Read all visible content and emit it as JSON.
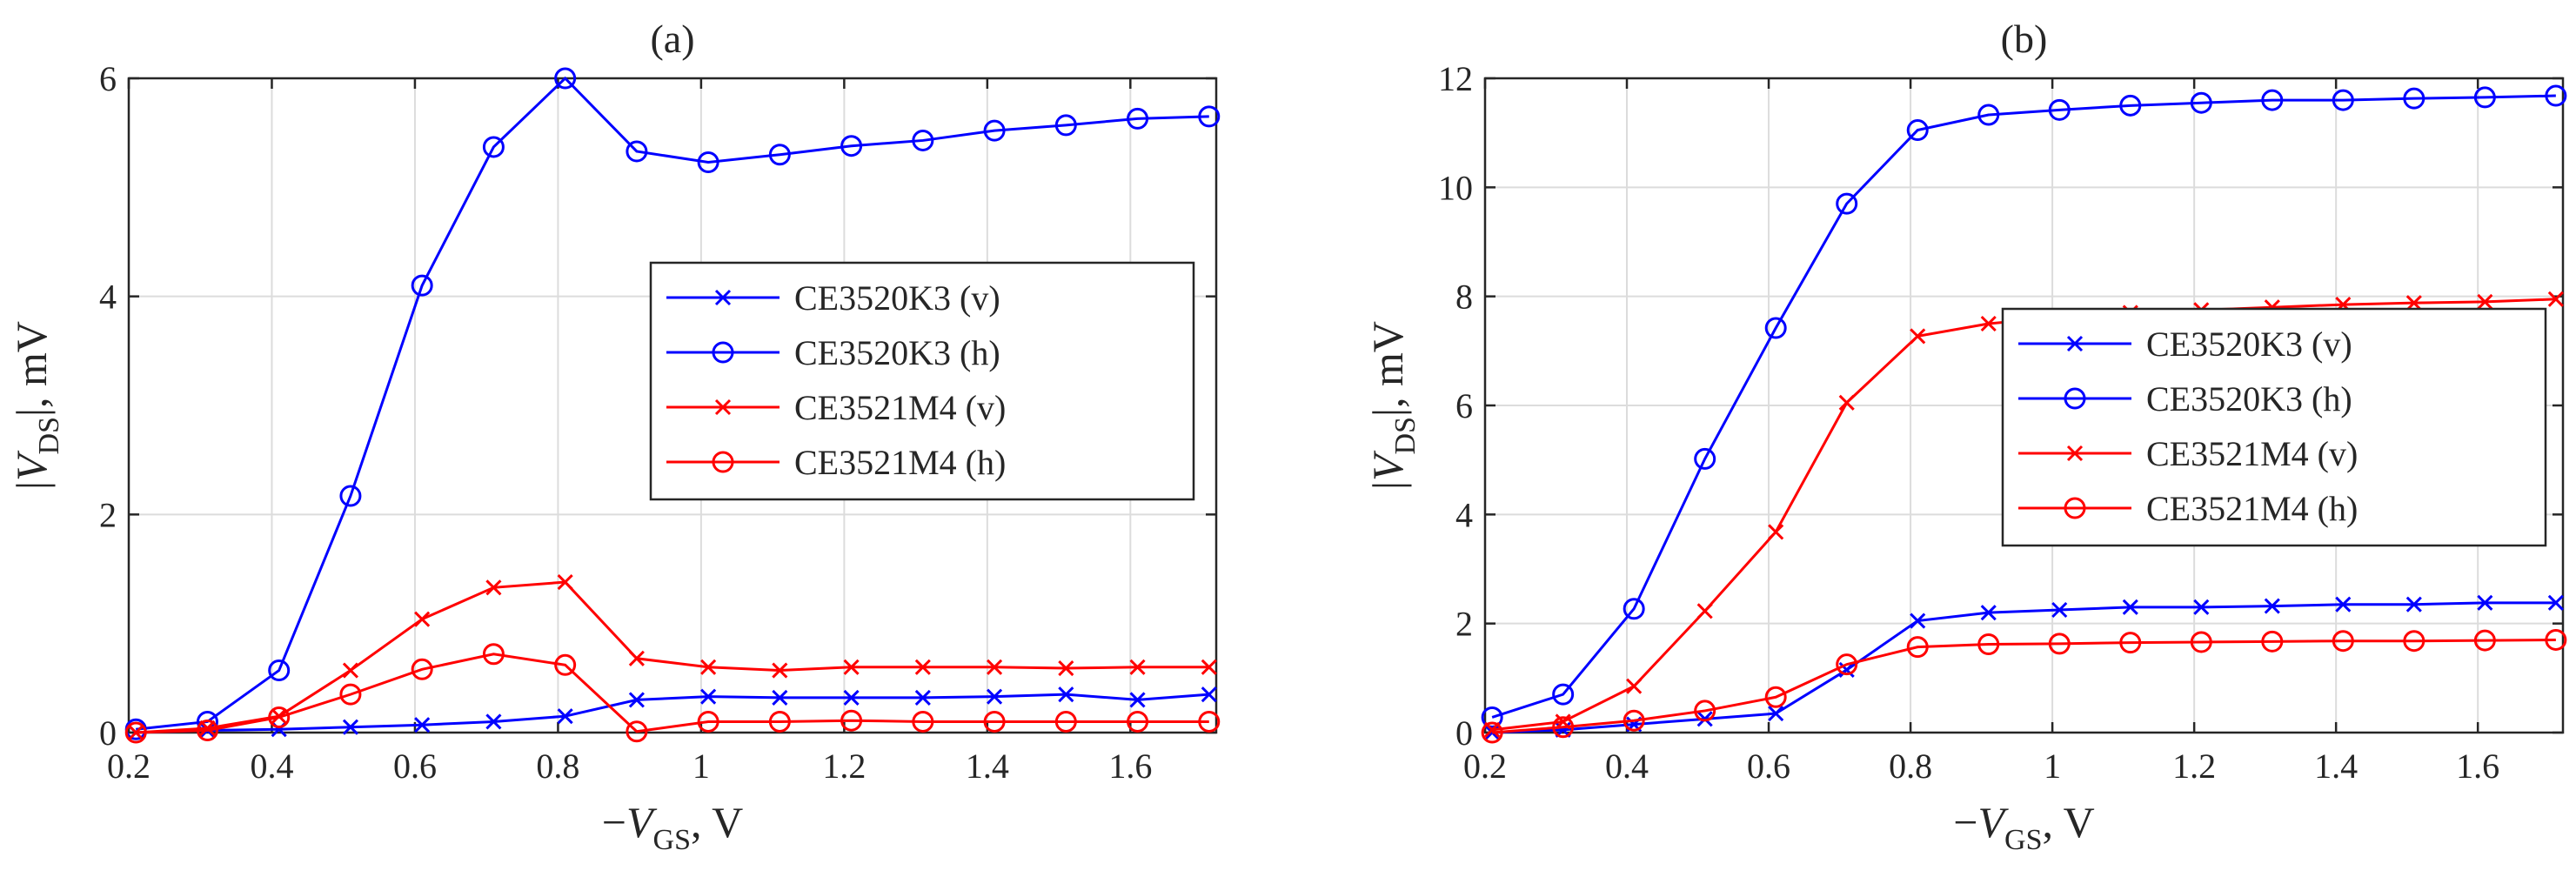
{
  "chart_data": [
    {
      "type": "line",
      "title": "(a)",
      "xlabel": {
        "prefix": "−",
        "var": "V",
        "sub": "GS",
        "unit": ", V"
      },
      "ylabel": {
        "pre": "|",
        "var": "V",
        "sub": "DS",
        "unit": "|, mV"
      },
      "xlim": [
        0.2,
        1.72
      ],
      "ylim": [
        0,
        6
      ],
      "xticks": [
        0.2,
        0.4,
        0.6,
        0.8,
        1,
        1.2,
        1.4,
        1.6
      ],
      "xtick_labels": [
        "0.2",
        "0.4",
        "0.6",
        "0.8",
        "1",
        "1.2",
        "1.4",
        "1.6"
      ],
      "yticks": [
        0,
        2,
        4,
        6
      ],
      "ytick_labels": [
        "0",
        "2",
        "4",
        "6"
      ],
      "grid": true,
      "legend_position": "center-right",
      "x": [
        0.21,
        0.31,
        0.41,
        0.51,
        0.61,
        0.71,
        0.81,
        0.91,
        1.01,
        1.11,
        1.21,
        1.31,
        1.41,
        1.51,
        1.61,
        1.71
      ],
      "series": [
        {
          "name": "CE3520K3 (v)",
          "color": "#0000ff",
          "marker": "x",
          "values": [
            0.0,
            0.02,
            0.03,
            0.05,
            0.07,
            0.1,
            0.15,
            0.3,
            0.33,
            0.32,
            0.32,
            0.32,
            0.33,
            0.35,
            0.3,
            0.35
          ]
        },
        {
          "name": "CE3520K3 (h)",
          "color": "#0000ff",
          "marker": "o",
          "values": [
            0.03,
            0.1,
            0.57,
            2.17,
            4.1,
            5.37,
            6.0,
            5.33,
            5.23,
            5.3,
            5.38,
            5.43,
            5.52,
            5.57,
            5.63,
            5.65
          ]
        },
        {
          "name": "CE3521M4 (v)",
          "color": "#ff0000",
          "marker": "x",
          "values": [
            0.0,
            0.04,
            0.15,
            0.57,
            1.04,
            1.33,
            1.38,
            0.68,
            0.6,
            0.57,
            0.6,
            0.6,
            0.6,
            0.59,
            0.6,
            0.6
          ]
        },
        {
          "name": "CE3521M4 (h)",
          "color": "#ff0000",
          "marker": "o",
          "values": [
            0.0,
            0.02,
            0.14,
            0.35,
            0.58,
            0.72,
            0.62,
            0.01,
            0.1,
            0.1,
            0.11,
            0.1,
            0.1,
            0.1,
            0.1,
            0.1
          ]
        }
      ]
    },
    {
      "type": "line",
      "title": "(b)",
      "xlabel": {
        "prefix": "−",
        "var": "V",
        "sub": "GS",
        "unit": ", V"
      },
      "ylabel": {
        "pre": "|",
        "var": "V",
        "sub": "DS",
        "unit": "|, mV"
      },
      "xlim": [
        0.2,
        1.72
      ],
      "ylim": [
        0,
        12
      ],
      "xticks": [
        0.2,
        0.4,
        0.6,
        0.8,
        1,
        1.2,
        1.4,
        1.6
      ],
      "xtick_labels": [
        "0.2",
        "0.4",
        "0.6",
        "0.8",
        "1",
        "1.2",
        "1.4",
        "1.6"
      ],
      "yticks": [
        0,
        2,
        4,
        6,
        8,
        10,
        12
      ],
      "ytick_labels": [
        "0",
        "2",
        "4",
        "6",
        "8",
        "10",
        "12"
      ],
      "grid": true,
      "legend_position": "center-right",
      "x": [
        0.21,
        0.31,
        0.41,
        0.51,
        0.61,
        0.71,
        0.81,
        0.91,
        1.01,
        1.11,
        1.21,
        1.31,
        1.41,
        1.51,
        1.61,
        1.71
      ],
      "series": [
        {
          "name": "CE3520K3 (v)",
          "color": "#0000ff",
          "marker": "x",
          "values": [
            0.0,
            0.05,
            0.15,
            0.25,
            0.35,
            1.15,
            2.05,
            2.2,
            2.25,
            2.3,
            2.3,
            2.32,
            2.35,
            2.35,
            2.38,
            2.38
          ]
        },
        {
          "name": "CE3520K3 (h)",
          "color": "#0000ff",
          "marker": "o",
          "values": [
            0.28,
            0.7,
            2.27,
            5.02,
            7.42,
            9.7,
            11.05,
            11.33,
            11.42,
            11.5,
            11.55,
            11.6,
            11.6,
            11.63,
            11.65,
            11.68
          ]
        },
        {
          "name": "CE3521M4 (v)",
          "color": "#ff0000",
          "marker": "x",
          "values": [
            0.05,
            0.2,
            0.85,
            2.23,
            3.68,
            6.05,
            7.27,
            7.5,
            7.62,
            7.7,
            7.75,
            7.8,
            7.85,
            7.88,
            7.9,
            7.95
          ]
        },
        {
          "name": "CE3521M4 (h)",
          "color": "#ff0000",
          "marker": "o",
          "values": [
            0.0,
            0.1,
            0.22,
            0.4,
            0.65,
            1.25,
            1.57,
            1.62,
            1.63,
            1.65,
            1.66,
            1.67,
            1.68,
            1.68,
            1.69,
            1.7
          ]
        }
      ]
    }
  ]
}
